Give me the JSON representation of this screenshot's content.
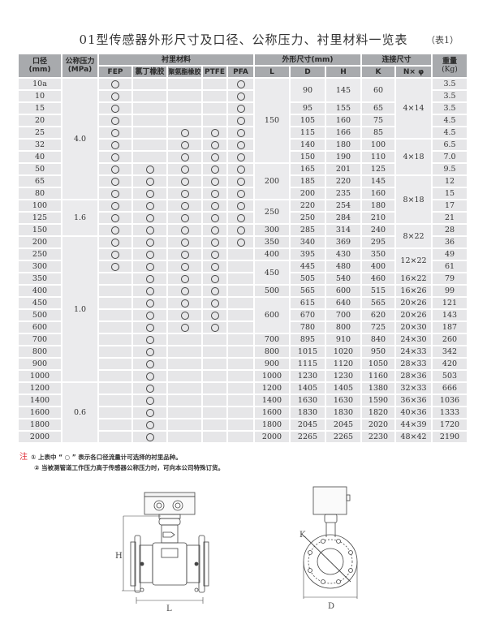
{
  "title": "01型传感器外形尺寸及口径、公称压力、衬里材料一览表",
  "table_no": "（表1）",
  "headers": {
    "dn": "口径",
    "dn_unit": "(mm)",
    "pressure": "公称压力",
    "pressure_unit": "(MPa)",
    "lining": "衬里材料",
    "linings": [
      "FEP",
      "氯丁橡胶",
      "聚氨酯橡胶",
      "PTFE",
      "PFA"
    ],
    "outline": "外形尺寸(mm)",
    "outline_cols": [
      "L",
      "D",
      "H"
    ],
    "connection": "连接尺寸",
    "connection_cols": [
      "K",
      "N× φ"
    ],
    "weight": "重量",
    "weight_unit": "(Kg)"
  },
  "circle_symbol": "○",
  "rows": [
    {
      "dn": "10a",
      "lining": [
        1,
        0,
        0,
        0,
        1
      ],
      "weight": "3.5"
    },
    {
      "dn": "10",
      "lining": [
        1,
        0,
        0,
        0,
        1
      ],
      "weight": "3.5"
    },
    {
      "dn": "15",
      "lining": [
        1,
        0,
        0,
        0,
        1
      ],
      "weight": "3.5"
    },
    {
      "dn": "20",
      "lining": [
        1,
        0,
        0,
        0,
        1
      ],
      "weight": "4.5"
    },
    {
      "dn": "25",
      "lining": [
        1,
        0,
        1,
        1,
        1
      ],
      "weight": "4.5"
    },
    {
      "dn": "32",
      "lining": [
        1,
        0,
        1,
        1,
        1
      ],
      "weight": "6.5"
    },
    {
      "dn": "40",
      "lining": [
        1,
        0,
        1,
        1,
        1
      ],
      "weight": "7.0"
    },
    {
      "dn": "50",
      "lining": [
        1,
        1,
        1,
        1,
        1
      ],
      "weight": "9.5"
    },
    {
      "dn": "65",
      "lining": [
        1,
        1,
        1,
        1,
        1
      ],
      "weight": "12"
    },
    {
      "dn": "80",
      "lining": [
        1,
        1,
        1,
        1,
        1
      ],
      "weight": "15"
    },
    {
      "dn": "100",
      "lining": [
        1,
        1,
        1,
        1,
        1
      ],
      "weight": "17"
    },
    {
      "dn": "125",
      "lining": [
        1,
        1,
        1,
        1,
        1
      ],
      "weight": "21"
    },
    {
      "dn": "150",
      "lining": [
        1,
        1,
        1,
        1,
        1
      ],
      "weight": "28"
    },
    {
      "dn": "200",
      "lining": [
        1,
        1,
        1,
        1,
        1
      ],
      "weight": "36"
    },
    {
      "dn": "250",
      "lining": [
        1,
        1,
        1,
        1,
        0
      ],
      "weight": "49"
    },
    {
      "dn": "300",
      "lining": [
        1,
        1,
        1,
        1,
        0
      ],
      "weight": "61"
    },
    {
      "dn": "350",
      "lining": [
        0,
        1,
        1,
        1,
        0
      ],
      "weight": "79"
    },
    {
      "dn": "400",
      "lining": [
        0,
        1,
        1,
        1,
        0
      ],
      "weight": "99"
    },
    {
      "dn": "450",
      "lining": [
        0,
        1,
        1,
        1,
        0
      ],
      "weight": "121"
    },
    {
      "dn": "500",
      "lining": [
        0,
        1,
        1,
        1,
        0
      ],
      "weight": "143"
    },
    {
      "dn": "600",
      "lining": [
        0,
        1,
        1,
        1,
        0
      ],
      "weight": "187"
    },
    {
      "dn": "700",
      "lining": [
        0,
        1,
        0,
        0,
        0
      ],
      "weight": "260"
    },
    {
      "dn": "800",
      "lining": [
        0,
        1,
        0,
        0,
        0
      ],
      "weight": "342"
    },
    {
      "dn": "900",
      "lining": [
        0,
        1,
        0,
        0,
        0
      ],
      "weight": "420"
    },
    {
      "dn": "1000",
      "lining": [
        0,
        1,
        0,
        0,
        0
      ],
      "weight": "503"
    },
    {
      "dn": "1200",
      "lining": [
        0,
        1,
        0,
        0,
        0
      ],
      "weight": "666"
    },
    {
      "dn": "1400",
      "lining": [
        0,
        1,
        0,
        0,
        0
      ],
      "weight": "1036"
    },
    {
      "dn": "1600",
      "lining": [
        0,
        1,
        0,
        0,
        0
      ],
      "weight": "1333"
    },
    {
      "dn": "1800",
      "lining": [
        0,
        1,
        0,
        0,
        0
      ],
      "weight": "1720"
    },
    {
      "dn": "2000",
      "lining": [
        0,
        1,
        0,
        0,
        0
      ],
      "weight": "2190"
    }
  ],
  "pressure_groups": [
    {
      "value": "4.0",
      "rows": 10
    },
    {
      "value": "1.6",
      "rows": 3
    },
    {
      "value": "1.0",
      "rows": 12
    },
    {
      "value": "0.6",
      "rows": 5
    }
  ],
  "L_groups": [
    {
      "value": "150",
      "rows": 7
    },
    {
      "value": "200",
      "rows": 3
    },
    {
      "value": "250",
      "rows": 2
    },
    {
      "value": "300",
      "rows": 1
    },
    {
      "value": "350",
      "rows": 1
    },
    {
      "value": "400",
      "rows": 1
    },
    {
      "value": "450",
      "rows": 2
    },
    {
      "value": "500",
      "rows": 1
    },
    {
      "value": "600",
      "rows": 3
    },
    {
      "value": "700",
      "rows": 1
    },
    {
      "value": "800",
      "rows": 1
    },
    {
      "value": "900",
      "rows": 1
    },
    {
      "value": "1000",
      "rows": 1
    },
    {
      "value": "1200",
      "rows": 1
    },
    {
      "value": "1400",
      "rows": 1
    },
    {
      "value": "1600",
      "rows": 1
    },
    {
      "value": "1800",
      "rows": 1
    },
    {
      "value": "2000",
      "rows": 1
    }
  ],
  "DHK_groups": [
    {
      "D": "90",
      "H": "145",
      "K": "60",
      "rows": 2
    },
    {
      "D": "95",
      "H": "155",
      "K": "65",
      "rows": 1
    },
    {
      "D": "105",
      "H": "160",
      "K": "75",
      "rows": 1
    },
    {
      "D": "115",
      "H": "166",
      "K": "85",
      "rows": 1
    },
    {
      "D": "140",
      "H": "180",
      "K": "100",
      "rows": 1
    },
    {
      "D": "150",
      "H": "190",
      "K": "110",
      "rows": 1
    },
    {
      "D": "165",
      "H": "201",
      "K": "125",
      "rows": 1
    },
    {
      "D": "185",
      "H": "220",
      "K": "145",
      "rows": 1
    },
    {
      "D": "200",
      "H": "235",
      "K": "160",
      "rows": 1
    },
    {
      "D": "220",
      "H": "254",
      "K": "180",
      "rows": 1
    },
    {
      "D": "250",
      "H": "284",
      "K": "210",
      "rows": 1
    },
    {
      "D": "285",
      "H": "314",
      "K": "240",
      "rows": 1
    },
    {
      "D": "340",
      "H": "369",
      "K": "295",
      "rows": 1
    },
    {
      "D": "395",
      "H": "430",
      "K": "350",
      "rows": 1
    },
    {
      "D": "445",
      "H": "480",
      "K": "400",
      "rows": 1
    },
    {
      "D": "505",
      "H": "540",
      "K": "460",
      "rows": 1
    },
    {
      "D": "565",
      "H": "600",
      "K": "515",
      "rows": 1
    },
    {
      "D": "615",
      "H": "640",
      "K": "565",
      "rows": 1
    },
    {
      "D": "670",
      "H": "700",
      "K": "620",
      "rows": 1
    },
    {
      "D": "780",
      "H": "800",
      "K": "725",
      "rows": 1
    },
    {
      "D": "895",
      "H": "910",
      "K": "840",
      "rows": 1
    },
    {
      "D": "1015",
      "H": "1020",
      "K": "950",
      "rows": 1
    },
    {
      "D": "1115",
      "H": "1120",
      "K": "1050",
      "rows": 1
    },
    {
      "D": "1230",
      "H": "1230",
      "K": "1160",
      "rows": 1
    },
    {
      "D": "1405",
      "H": "1405",
      "K": "1380",
      "rows": 1
    },
    {
      "D": "1630",
      "H": "1630",
      "K": "1590",
      "rows": 1
    },
    {
      "D": "1830",
      "H": "1830",
      "K": "1820",
      "rows": 1
    },
    {
      "D": "2045",
      "H": "2045",
      "K": "2020",
      "rows": 1
    },
    {
      "D": "2265",
      "H": "2265",
      "K": "2230",
      "rows": 1
    }
  ],
  "N_groups": [
    {
      "value": "4×14",
      "rows": 5
    },
    {
      "value": "4×18",
      "rows": 3
    },
    {
      "value": "8×18",
      "rows": 4
    },
    {
      "value": "8×22",
      "rows": 2
    },
    {
      "value": "12×22",
      "rows": 2
    },
    {
      "value": "16×22",
      "rows": 1
    },
    {
      "value": "16×26",
      "rows": 1
    },
    {
      "value": "20×26",
      "rows": 1
    },
    {
      "value": "20×26",
      "rows": 1
    },
    {
      "value": "20×30",
      "rows": 1
    },
    {
      "value": "24×30",
      "rows": 1
    },
    {
      "value": "24×33",
      "rows": 1
    },
    {
      "value": "28×33",
      "rows": 1
    },
    {
      "value": "28×36",
      "rows": 1
    },
    {
      "value": "32×33",
      "rows": 1
    },
    {
      "value": "36×36",
      "rows": 1
    },
    {
      "value": "40×36",
      "rows": 1
    },
    {
      "value": "44×39",
      "rows": 1
    },
    {
      "value": "48×42",
      "rows": 1
    }
  ],
  "notes": {
    "mark": "注",
    "items": [
      "① 上表中 “ ○ ” 表示各口径流量计可选择的衬里品种。",
      "② 当被测管道工作压力高于传感器公称压力时，可向本公司特殊订货。"
    ]
  },
  "drawing_labels": {
    "H": "H",
    "L": "L",
    "K": "K",
    "D": "D"
  }
}
